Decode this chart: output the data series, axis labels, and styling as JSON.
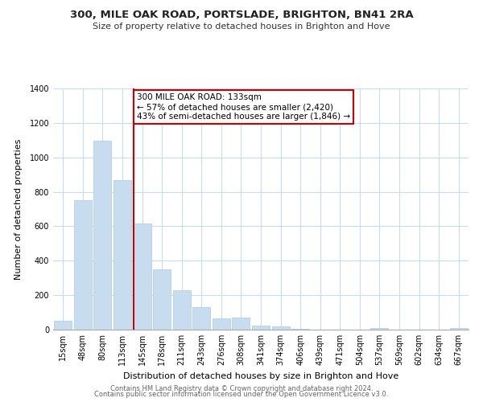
{
  "title": "300, MILE OAK ROAD, PORTSLADE, BRIGHTON, BN41 2RA",
  "subtitle": "Size of property relative to detached houses in Brighton and Hove",
  "xlabel": "Distribution of detached houses by size in Brighton and Hove",
  "ylabel": "Number of detached properties",
  "bar_labels": [
    "15sqm",
    "48sqm",
    "80sqm",
    "113sqm",
    "145sqm",
    "178sqm",
    "211sqm",
    "243sqm",
    "276sqm",
    "308sqm",
    "341sqm",
    "374sqm",
    "406sqm",
    "439sqm",
    "471sqm",
    "504sqm",
    "537sqm",
    "569sqm",
    "602sqm",
    "634sqm",
    "667sqm"
  ],
  "bar_values": [
    50,
    750,
    1095,
    870,
    615,
    350,
    228,
    130,
    65,
    70,
    25,
    18,
    5,
    2,
    0,
    0,
    10,
    0,
    0,
    0,
    10
  ],
  "bar_color": "#c8dcf0",
  "bar_edge_color": "#aac8e8",
  "vline_color": "#cc0000",
  "vline_index": 3.575,
  "annotation_text": "300 MILE OAK ROAD: 133sqm\n← 57% of detached houses are smaller (2,420)\n43% of semi-detached houses are larger (1,846) →",
  "annotation_box_color": "#ffffff",
  "annotation_box_edge": "#cc0000",
  "ylim": [
    0,
    1400
  ],
  "yticks": [
    0,
    200,
    400,
    600,
    800,
    1000,
    1200,
    1400
  ],
  "footer1": "Contains HM Land Registry data © Crown copyright and database right 2024.",
  "footer2": "Contains public sector information licensed under the Open Government Licence v3.0.",
  "bg_color": "#ffffff",
  "grid_color": "#c8dcf0",
  "title_fontsize": 9.5,
  "subtitle_fontsize": 8,
  "xlabel_fontsize": 8,
  "ylabel_fontsize": 8,
  "tick_fontsize": 7,
  "footer_fontsize": 6
}
